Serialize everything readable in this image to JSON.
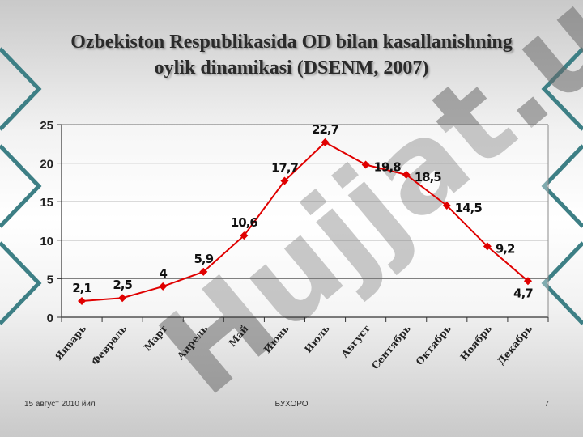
{
  "title": {
    "line1": "Ozbekiston Respublikasida OD bilan kasallanishning",
    "line2": "oylik dinamikasi (DSENM, 2007)"
  },
  "footer": {
    "date": "15 август 2010 йил",
    "center": "БУХОРО",
    "page": "7"
  },
  "watermark": {
    "text": "Hujjat.uz"
  },
  "colors": {
    "series": "#e00000",
    "frame_arrows": "#3d7f85",
    "watermark_purple": "#9a86d4",
    "watermark_gray": "#6a6a6a"
  },
  "chart_data": {
    "type": "line",
    "categories": [
      "Январь",
      "Февраль",
      "Март",
      "Апрель",
      "Май",
      "Июнь",
      "Июль",
      "Август",
      "Сентябрь",
      "Октябрь",
      "Ноябрь",
      "Декабрь"
    ],
    "series": [
      {
        "values": [
          2.1,
          2.5,
          4,
          5.9,
          10.6,
          17.7,
          22.7,
          19.8,
          18.5,
          14.5,
          9.2,
          4.7
        ],
        "labels": [
          "2,1",
          "2,5",
          "4",
          "5,9",
          "10,6",
          "17,7",
          "22,7",
          "19,8",
          "18,5",
          "14,5",
          "9,2",
          "4,7"
        ]
      }
    ],
    "yticks": [
      "0",
      "5",
      "10",
      "15",
      "20",
      "25"
    ],
    "ylim": [
      0,
      25
    ],
    "grid": true,
    "legend": "none",
    "marker": "diamond"
  }
}
